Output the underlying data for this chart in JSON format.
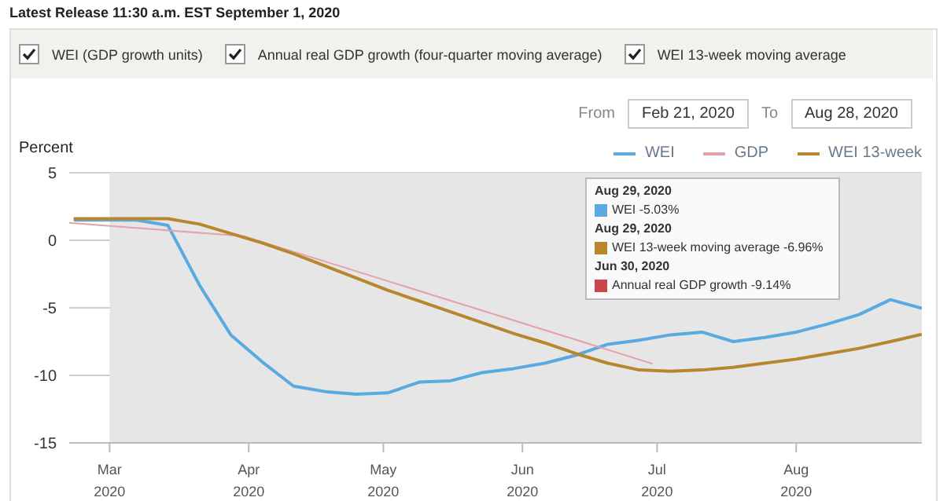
{
  "chart_data": {
    "type": "line",
    "title": "Latest Release 11:30 a.m. EST September 1, 2020",
    "ylabel": "Percent",
    "annotations": [
      "WEI (GDP growth units)",
      "Annual real GDP growth (four-quarter moving average)",
      "WEI 13-week moving average",
      "From",
      "Feb 21, 2020",
      "To",
      "Aug 28, 2020",
      "Aug 29, 2020",
      "WEI -5.03%",
      "Aug 29, 2020",
      "WEI 13-week moving average -6.96%",
      "Jun 30, 2020",
      "Annual real GDP growth -9.14%"
    ],
    "series": [
      {
        "name": "WEI",
        "color": "#5aaae2",
        "x": [
          "2020-02-22",
          "2020-02-29",
          "2020-03-07",
          "2020-03-14",
          "2020-03-21",
          "2020-03-28",
          "2020-04-04",
          "2020-04-11",
          "2020-04-18",
          "2020-04-25",
          "2020-05-02",
          "2020-05-09",
          "2020-05-16",
          "2020-05-23",
          "2020-05-30",
          "2020-06-06",
          "2020-06-13",
          "2020-06-20",
          "2020-06-27",
          "2020-07-04",
          "2020-07-11",
          "2020-07-18",
          "2020-07-25",
          "2020-08-01",
          "2020-08-08",
          "2020-08-15",
          "2020-08-22",
          "2020-08-29"
        ],
        "values": [
          1.5,
          1.5,
          1.5,
          1.1,
          -3.3,
          -7.0,
          -9.0,
          -10.8,
          -11.2,
          -11.4,
          -11.3,
          -10.5,
          -10.4,
          -9.8,
          -9.5,
          -9.1,
          -8.5,
          -7.7,
          -7.4,
          -7.0,
          -6.8,
          -7.5,
          -7.2,
          -6.8,
          -6.2,
          -5.5,
          -4.4,
          -5.03
        ]
      },
      {
        "name": "GDP",
        "color": "#e2a4aa",
        "x": [
          "2020-02-21",
          "2020-03-31",
          "2020-06-30"
        ],
        "values": [
          1.3,
          0.3,
          -9.14
        ]
      },
      {
        "name": "WEI 13-week",
        "color": "#b8862e",
        "x": [
          "2020-02-22",
          "2020-02-29",
          "2020-03-07",
          "2020-03-14",
          "2020-03-21",
          "2020-03-28",
          "2020-04-04",
          "2020-04-11",
          "2020-04-18",
          "2020-04-25",
          "2020-05-02",
          "2020-05-09",
          "2020-05-16",
          "2020-05-23",
          "2020-05-30",
          "2020-06-06",
          "2020-06-13",
          "2020-06-20",
          "2020-06-27",
          "2020-07-04",
          "2020-07-11",
          "2020-07-18",
          "2020-07-25",
          "2020-08-01",
          "2020-08-08",
          "2020-08-15",
          "2020-08-22",
          "2020-08-29"
        ],
        "values": [
          1.6,
          1.6,
          1.6,
          1.6,
          1.2,
          0.5,
          -0.2,
          -1.0,
          -1.9,
          -2.8,
          -3.7,
          -4.5,
          -5.3,
          -6.1,
          -6.9,
          -7.6,
          -8.4,
          -9.1,
          -9.6,
          -9.7,
          -9.6,
          -9.4,
          -9.1,
          -8.8,
          -8.4,
          -8.0,
          -7.5,
          -6.96
        ]
      }
    ],
    "xlim": [
      "2020-02-21",
      "2020-08-29"
    ],
    "xticks": [
      {
        "value": "2020-03-01",
        "label": "Mar 2020"
      },
      {
        "value": "2020-04-01",
        "label": "Apr 2020"
      },
      {
        "value": "2020-05-01",
        "label": "May 2020"
      },
      {
        "value": "2020-06-01",
        "label": "Jun 2020"
      },
      {
        "value": "2020-07-01",
        "label": "Jul 2020"
      },
      {
        "value": "2020-08-01",
        "label": "Aug 2020"
      }
    ],
    "ylim": [
      -15,
      5
    ],
    "yticks": [
      -15,
      -10,
      -5,
      0,
      5
    ],
    "bands": [
      {
        "axis": "x",
        "from": "2020-03-01",
        "to": "2020-08-29",
        "color": "#e6e6e6"
      }
    ],
    "grid": "y",
    "legend": "top right",
    "marker": "none",
    "line_style": "solid"
  }
}
